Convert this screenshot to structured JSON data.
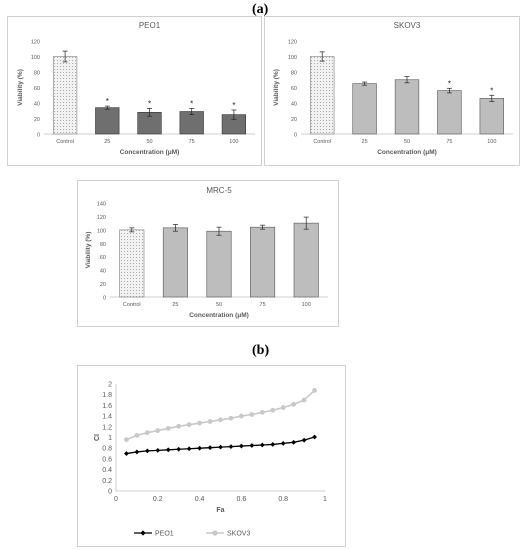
{
  "panel_a_label": "(a)",
  "panel_b_label": "(b)",
  "colors": {
    "control_fill": "#f2f2f2",
    "dark_bar": "#6f6f6f",
    "light_bar": "#bdbdbd",
    "axis": "#bfbfbf",
    "text": "#595959",
    "peo1_line": "#000000",
    "skov3_line": "#c8c8c8"
  },
  "chart_data": [
    {
      "id": "peo1",
      "type": "bar",
      "title": "PEO1",
      "xlabel": "Concentration (μM)",
      "ylabel": "Viability (%)",
      "categories": [
        "Control",
        "25",
        "50",
        "75",
        "100"
      ],
      "values": [
        100,
        34,
        28,
        29,
        25
      ],
      "errors": [
        7,
        2,
        5,
        4,
        6
      ],
      "significance": [
        "",
        "*",
        "*",
        "*",
        "*"
      ],
      "ylim": [
        0,
        120
      ],
      "yticks": [
        0,
        20,
        40,
        60,
        80,
        100,
        120
      ],
      "bar_style": "dark"
    },
    {
      "id": "skov3",
      "type": "bar",
      "title": "SKOV3",
      "xlabel": "Concentration (μM)",
      "ylabel": "Viability (%)",
      "categories": [
        "Control",
        "25",
        "50",
        "75",
        "100"
      ],
      "values": [
        100,
        65,
        70,
        56,
        46
      ],
      "errors": [
        6,
        2,
        4,
        3,
        4
      ],
      "significance": [
        "",
        "",
        "",
        "*",
        "*"
      ],
      "ylim": [
        0,
        120
      ],
      "yticks": [
        0,
        20,
        40,
        60,
        80,
        100,
        120
      ],
      "bar_style": "light"
    },
    {
      "id": "mrc5",
      "type": "bar",
      "title": "MRC-5",
      "xlabel": "Concentration (μM)",
      "ylabel": "Viability (%)",
      "categories": [
        "Control",
        "25",
        "50",
        "75",
        "100"
      ],
      "values": [
        100,
        103,
        98,
        104,
        110
      ],
      "errors": [
        3,
        5,
        6,
        3,
        9
      ],
      "significance": [
        "",
        "",
        "",
        "",
        ""
      ],
      "ylim": [
        0,
        140
      ],
      "yticks": [
        0,
        20,
        40,
        60,
        80,
        100,
        120,
        140
      ],
      "bar_style": "light"
    },
    {
      "id": "ci",
      "type": "line",
      "title": "",
      "xlabel": "Fa",
      "ylabel": "CI",
      "xlim": [
        0,
        1
      ],
      "ylim": [
        0,
        2
      ],
      "xticks": [
        0,
        0.2,
        0.4,
        0.6,
        0.8,
        1
      ],
      "xtick_labels": [
        "0",
        "0.2",
        "0.4",
        "0.6",
        "0.8",
        "1"
      ],
      "yticks": [
        0,
        0.2,
        0.4,
        0.6,
        0.8,
        1,
        1.2,
        1.4,
        1.6,
        1.8,
        2
      ],
      "ytick_labels": [
        "0",
        "0.2",
        "0.4",
        "0.6",
        "0.8",
        "1",
        "1.2",
        "1.4",
        "1.6",
        "1.8",
        "2"
      ],
      "x": [
        0.05,
        0.1,
        0.15,
        0.2,
        0.25,
        0.3,
        0.35,
        0.4,
        0.45,
        0.5,
        0.55,
        0.6,
        0.65,
        0.7,
        0.75,
        0.8,
        0.85,
        0.9,
        0.95
      ],
      "series": [
        {
          "name": "PEO1",
          "marker": "diamond",
          "values": [
            0.7,
            0.73,
            0.75,
            0.76,
            0.77,
            0.78,
            0.79,
            0.8,
            0.81,
            0.82,
            0.83,
            0.84,
            0.85,
            0.86,
            0.87,
            0.89,
            0.91,
            0.95,
            1.01
          ]
        },
        {
          "name": "SKOV3",
          "marker": "circle",
          "values": [
            0.96,
            1.04,
            1.09,
            1.13,
            1.17,
            1.21,
            1.24,
            1.27,
            1.3,
            1.33,
            1.36,
            1.4,
            1.43,
            1.47,
            1.51,
            1.56,
            1.62,
            1.7,
            1.88
          ]
        }
      ],
      "legend_position": "bottom",
      "grid": false
    }
  ]
}
